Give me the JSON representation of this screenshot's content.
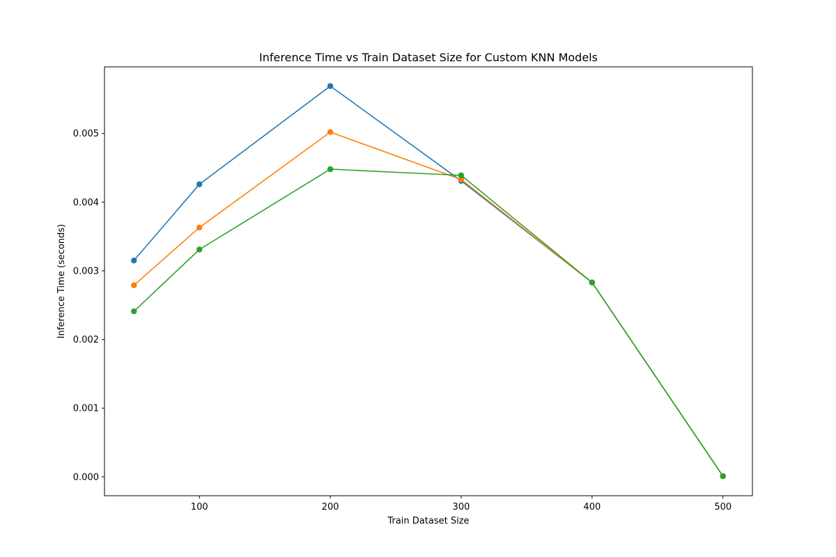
{
  "chart_data": {
    "type": "line",
    "title": "Inference Time vs Train Dataset Size for Custom KNN Models",
    "xlabel": "Train Dataset Size",
    "ylabel": "Inference Time (seconds)",
    "x": [
      50,
      100,
      200,
      300,
      400,
      500
    ],
    "xlim": [
      27.5,
      522.5
    ],
    "ylim": [
      -0.000275,
      0.00597
    ],
    "xticks": [
      100,
      200,
      300,
      400,
      500
    ],
    "yticks": [
      0.0,
      0.001,
      0.002,
      0.003,
      0.004,
      0.005
    ],
    "ytick_labels": [
      "0.000",
      "0.001",
      "0.002",
      "0.003",
      "0.004",
      "0.005"
    ],
    "grid": false,
    "legend": "none",
    "series": [
      {
        "color": "#1f77b4",
        "values": [
          0.00315,
          0.00426,
          0.00569,
          0.00431,
          0.00283,
          1e-05
        ]
      },
      {
        "color": "#ff7f0e",
        "values": [
          0.00279,
          0.00363,
          0.00502,
          0.00433,
          0.00283,
          1e-05
        ]
      },
      {
        "color": "#2ca02c",
        "values": [
          0.00241,
          0.00331,
          0.00448,
          0.00439,
          0.00283,
          1e-05
        ]
      }
    ]
  }
}
